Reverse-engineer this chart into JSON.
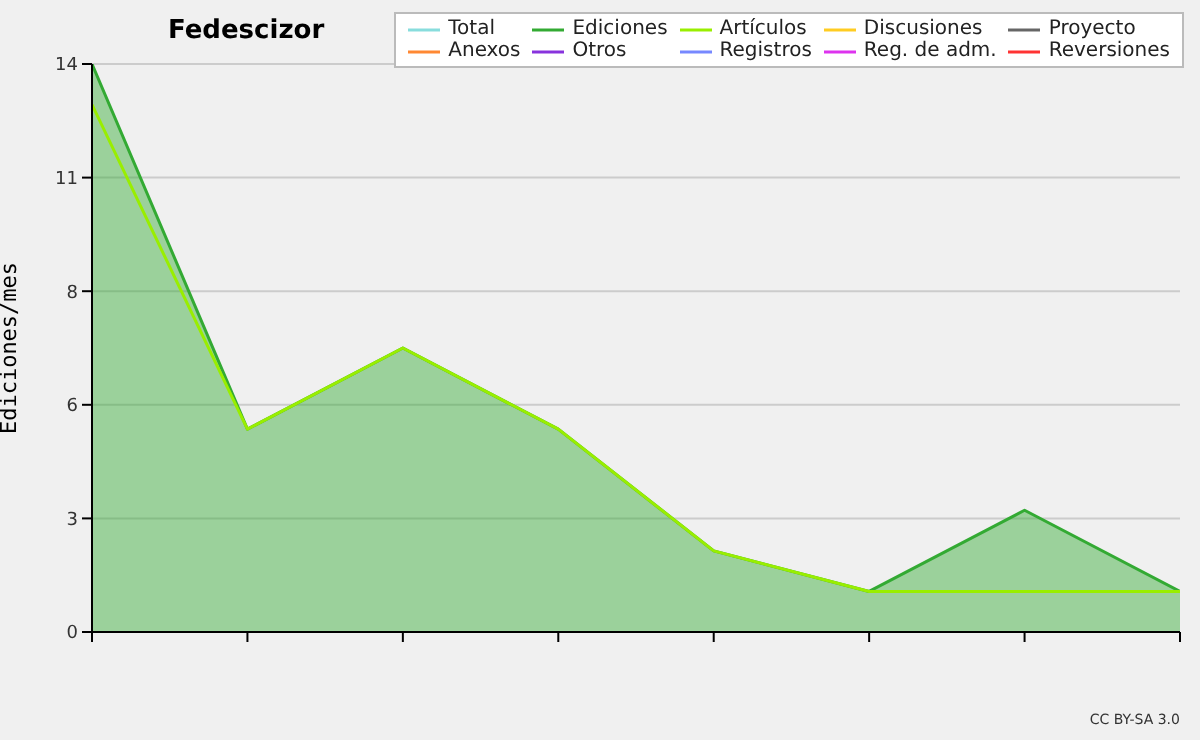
{
  "chart_data": {
    "type": "line",
    "title": "Fedescizor",
    "ylabel": "Ediciones/mes",
    "categories": [
      null,
      null,
      null,
      null,
      null,
      null,
      null,
      null
    ],
    "ylim": [
      0,
      14
    ],
    "yticks": [
      {
        "value": 0,
        "label": "0"
      },
      {
        "value": 2.8,
        "label": "3"
      },
      {
        "value": 5.6,
        "label": "6"
      },
      {
        "value": 8.4,
        "label": "8"
      },
      {
        "value": 11.2,
        "label": "11"
      },
      {
        "value": 14,
        "label": "14"
      }
    ],
    "grid": "y",
    "legend": "top right",
    "marker": "none",
    "line_style": "solid",
    "annotations": [
      "CC BY-SA 3.0"
    ],
    "series": [
      {
        "name": "Total",
        "color": "#88dddd",
        "values": [
          null,
          null,
          null,
          null,
          null,
          null,
          null,
          null
        ]
      },
      {
        "name": "Ediciones",
        "type": "area",
        "color": "#33aa33",
        "values": [
          14,
          5,
          7,
          5,
          2,
          1,
          3,
          1
        ]
      },
      {
        "name": "Artículos",
        "color": "#99ee00",
        "values": [
          13,
          5,
          7,
          5,
          2,
          1,
          1,
          1
        ]
      },
      {
        "name": "Discusiones",
        "color": "#ffcc22",
        "values": [
          null,
          null,
          null,
          null,
          null,
          null,
          null,
          null
        ]
      },
      {
        "name": "Proyecto",
        "color": "#666666",
        "values": [
          null,
          null,
          null,
          null,
          null,
          null,
          null,
          null
        ]
      },
      {
        "name": "Anexos",
        "color": "#ff8833",
        "values": [
          null,
          null,
          null,
          null,
          null,
          null,
          null,
          null
        ]
      },
      {
        "name": "Otros",
        "color": "#8833dd",
        "values": [
          null,
          null,
          null,
          null,
          null,
          null,
          null,
          null
        ]
      },
      {
        "name": "Registros",
        "color": "#7788ff",
        "values": [
          null,
          null,
          null,
          null,
          null,
          null,
          null,
          null
        ]
      },
      {
        "name": "Reg. de adm.",
        "color": "#dd33ee",
        "values": [
          null,
          null,
          null,
          null,
          null,
          null,
          null,
          null
        ]
      },
      {
        "name": "Reversiones",
        "color": "#ff3333",
        "values": [
          null,
          null,
          null,
          null,
          null,
          null,
          null,
          null
        ]
      }
    ]
  }
}
